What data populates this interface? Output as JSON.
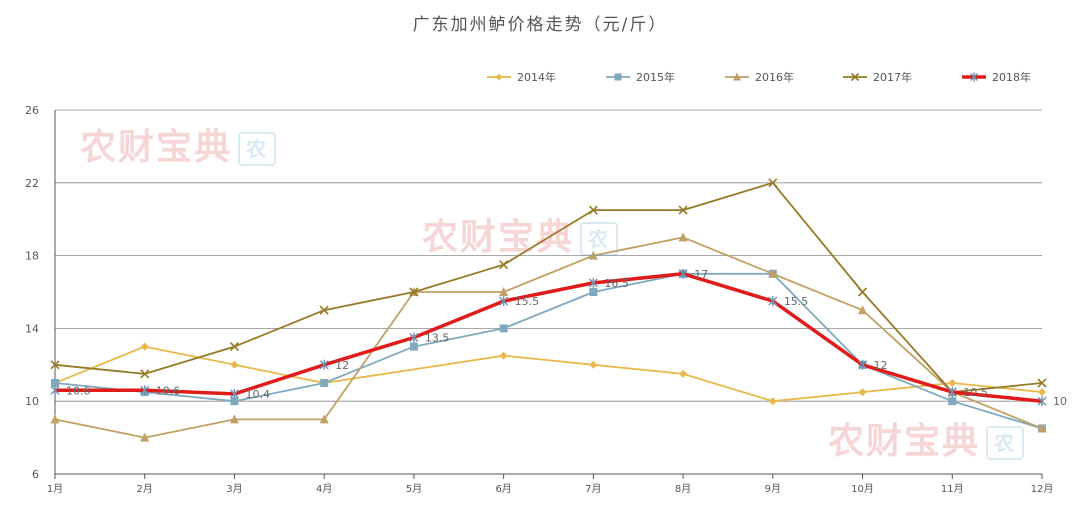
{
  "chart_data": {
    "type": "line",
    "title": "广东加州鲈价格走势（元/斤）",
    "xlabel": "",
    "ylabel": "",
    "categories": [
      "1月",
      "2月",
      "3月",
      "4月",
      "5月",
      "6月",
      "7月",
      "8月",
      "9月",
      "10月",
      "11月",
      "12月"
    ],
    "ylim": [
      6,
      26
    ],
    "yticks": [
      6,
      10,
      14,
      18,
      22,
      26
    ],
    "grid": true,
    "legend_position": "top",
    "series": [
      {
        "name": "2014年",
        "color": "#e8b84a",
        "marker": "diamond",
        "values": [
          11,
          13,
          12,
          11,
          null,
          12.5,
          12,
          11.5,
          10,
          10.5,
          11,
          10.5
        ]
      },
      {
        "name": "2015年",
        "color": "#7fa9bd",
        "marker": "square",
        "values": [
          11,
          10.5,
          10,
          11,
          13,
          14,
          16,
          17,
          17,
          12,
          10,
          8.5
        ]
      },
      {
        "name": "2016年",
        "color": "#c0a064",
        "marker": "triangle",
        "values": [
          9,
          8,
          9,
          9,
          16,
          16,
          18,
          19,
          17,
          15,
          10.5,
          8.5
        ]
      },
      {
        "name": "2017年",
        "color": "#977a26",
        "marker": "x",
        "values": [
          12,
          11.5,
          13,
          15,
          16,
          17.5,
          20.5,
          20.5,
          22,
          16,
          10.5,
          11
        ]
      },
      {
        "name": "2018年",
        "color": "#e11a1a",
        "marker": "star",
        "bold": true,
        "values": [
          10.6,
          10.6,
          10.4,
          12,
          13.5,
          15.5,
          16.5,
          17,
          15.5,
          12,
          10.5,
          10
        ]
      }
    ],
    "data_labels": {
      "series": "2018年",
      "labels": [
        "10.6",
        "10.6",
        "10.4",
        "12",
        "13.5",
        "15.5",
        "16.5",
        "17",
        "15.5",
        "12",
        "10.5",
        "10"
      ]
    }
  },
  "watermark": {
    "text": "农财宝典",
    "logo": "农"
  }
}
